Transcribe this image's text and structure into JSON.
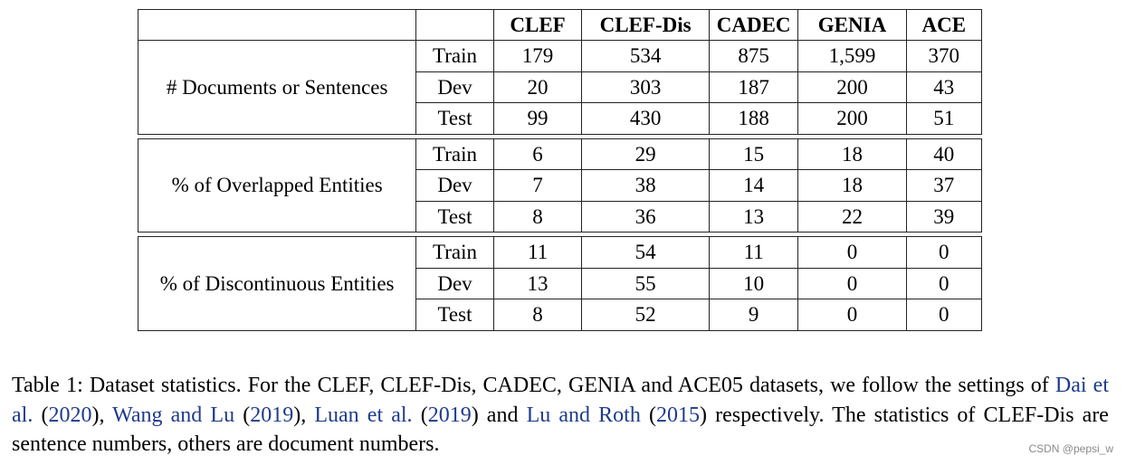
{
  "table": {
    "header": [
      "",
      "",
      "CLEF",
      "CLEF-Dis",
      "CADEC",
      "GENIA",
      "ACE"
    ],
    "groups": [
      {
        "label": "# Documents or Sentences",
        "rows": [
          {
            "split": "Train",
            "values": [
              "179",
              "534",
              "875",
              "1,599",
              "370"
            ]
          },
          {
            "split": "Dev",
            "values": [
              "20",
              "303",
              "187",
              "200",
              "43"
            ]
          },
          {
            "split": "Test",
            "values": [
              "99",
              "430",
              "188",
              "200",
              "51"
            ]
          }
        ]
      },
      {
        "label": "% of Overlapped Entities",
        "rows": [
          {
            "split": "Train",
            "values": [
              "6",
              "29",
              "15",
              "18",
              "40"
            ]
          },
          {
            "split": "Dev",
            "values": [
              "7",
              "38",
              "14",
              "18",
              "37"
            ]
          },
          {
            "split": "Test",
            "values": [
              "8",
              "36",
              "13",
              "22",
              "39"
            ]
          }
        ]
      },
      {
        "label": "% of Discontinuous Entities",
        "rows": [
          {
            "split": "Train",
            "values": [
              "11",
              "54",
              "11",
              "0",
              "0"
            ]
          },
          {
            "split": "Dev",
            "values": [
              "13",
              "55",
              "10",
              "0",
              "0"
            ]
          },
          {
            "split": "Test",
            "values": [
              "8",
              "52",
              "9",
              "0",
              "0"
            ]
          }
        ]
      }
    ]
  },
  "caption": {
    "part1": "Table 1:  Dataset statistics. For the CLEF, CLEF-Dis, CADEC, GENIA and ACE05 datasets, we follow the settings of ",
    "cite1_name": "Dai et al.",
    "cite1_open": " (",
    "cite1_year": "2020",
    "cite1_close": "), ",
    "cite2_name": "Wang and Lu",
    "cite2_open": " (",
    "cite2_year": "2019",
    "cite2_close": "), ",
    "cite3_name": "Luan et al.",
    "cite3_open": " (",
    "cite3_year": "2019",
    "cite3_close": ") and ",
    "cite4_name": "Lu and Roth",
    "cite4_open": " (",
    "cite4_year": "2015",
    "cite4_close": ") respectively. The statistics of CLEF-Dis are sentence numbers, others are document numbers.",
    "colors": {
      "citation": "#1f3b8c"
    }
  },
  "watermark": "CSDN @pepsi_w"
}
